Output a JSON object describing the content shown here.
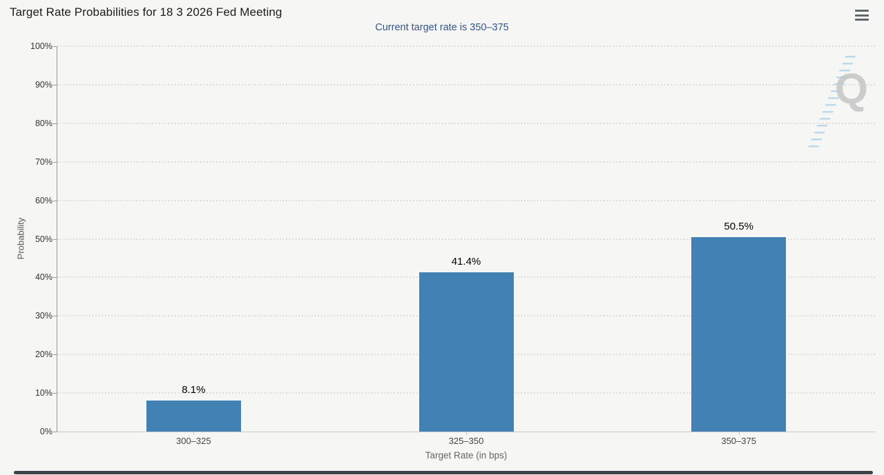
{
  "window": {
    "background": "#f6f6f5"
  },
  "header": {
    "title": "Target Rate Probabilities for 18 3 2026 Fed Meeting",
    "menu_icon": "hamburger"
  },
  "chart_data": {
    "type": "bar",
    "title": "Target Rate Probabilities for 18 3 2026 Fed Meeting",
    "subtitle": "Current target rate is 350–375",
    "categories": [
      "300–325",
      "325–350",
      "350–375"
    ],
    "values": [
      8.1,
      41.4,
      50.5
    ],
    "value_labels": [
      "8.1%",
      "41.4%",
      "50.5%"
    ],
    "xlabel": "Target Rate (in bps)",
    "ylabel": "Probability",
    "ylim": [
      0,
      100
    ],
    "ytick_values": [
      0,
      10,
      20,
      30,
      40,
      50,
      60,
      70,
      80,
      90,
      100
    ],
    "ytick_labels": [
      "0%",
      "10%",
      "20%",
      "30%",
      "40%",
      "50%",
      "60%",
      "70%",
      "80%",
      "90%",
      "100%"
    ],
    "grid": "horizontal-dotted",
    "legend_position": "none",
    "bar_color": "#4181B4",
    "subtitle_color": "#33558D",
    "watermark_letter": "Q"
  }
}
